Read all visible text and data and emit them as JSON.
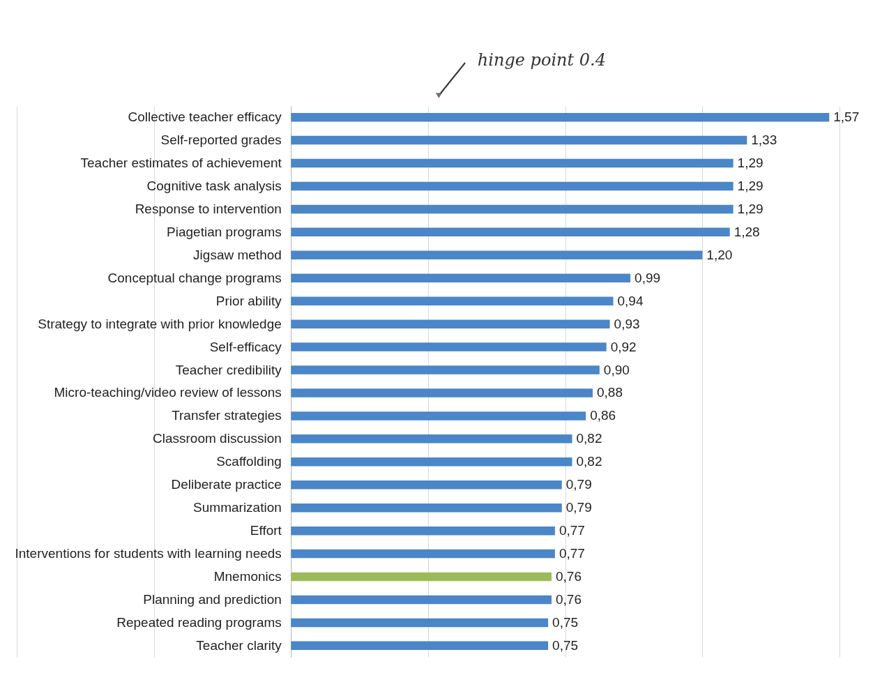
{
  "chart_data": {
    "type": "bar",
    "orientation": "horizontal",
    "categories": [
      "Collective teacher efficacy",
      "Self-reported grades",
      "Teacher estimates of achievement",
      "Cognitive task analysis",
      "Response to intervention",
      "Piagetian programs",
      "Jigsaw method",
      "Conceptual change programs",
      "Prior ability",
      "Strategy to integrate with prior knowledge",
      "Self-efficacy",
      "Teacher credibility",
      "Micro-teaching/video review of lessons",
      "Transfer strategies",
      "Classroom discussion",
      "Scaffolding",
      "Deliberate practice",
      "Summarization",
      "Effort",
      "Interventions for students with learning needs",
      "Mnemonics",
      "Planning and prediction",
      "Repeated reading programs",
      "Teacher clarity"
    ],
    "values": [
      1.57,
      1.33,
      1.29,
      1.29,
      1.29,
      1.28,
      1.2,
      0.99,
      0.94,
      0.93,
      0.92,
      0.9,
      0.88,
      0.86,
      0.82,
      0.82,
      0.79,
      0.79,
      0.77,
      0.77,
      0.76,
      0.76,
      0.75,
      0.75
    ],
    "value_labels": [
      "1,57",
      "1,33",
      "1,29",
      "1,29",
      "1,29",
      "1,28",
      "1,20",
      "0,99",
      "0,94",
      "0,93",
      "0,92",
      "0,90",
      "0,88",
      "0,86",
      "0,82",
      "0,82",
      "0,79",
      "0,79",
      "0,77",
      "0,77",
      "0,76",
      "0,76",
      "0,75",
      "0,75"
    ],
    "colors": [
      "#4a86c8",
      "#4a86c8",
      "#4a86c8",
      "#4a86c8",
      "#4a86c8",
      "#4a86c8",
      "#4a86c8",
      "#4a86c8",
      "#4a86c8",
      "#4a86c8",
      "#4a86c8",
      "#4a86c8",
      "#4a86c8",
      "#4a86c8",
      "#4a86c8",
      "#4a86c8",
      "#4a86c8",
      "#4a86c8",
      "#4a86c8",
      "#4a86c8",
      "#9bbb59",
      "#4a86c8",
      "#4a86c8",
      "#4a86c8"
    ],
    "xlim": [
      -0.8,
      1.6
    ],
    "xticks": [
      {
        "value": -0.8,
        "label": null
      },
      {
        "value": -0.4,
        "label": null
      },
      {
        "value": 0,
        "label": null
      },
      {
        "value": 0.4,
        "label": null
      },
      {
        "value": 0.8,
        "label": null
      },
      {
        "value": 1.2,
        "label": null
      },
      {
        "value": 1.6,
        "label": null
      }
    ],
    "grid": "x",
    "tick_labels": "y",
    "annotations": [
      "hinge point 0.4"
    ]
  }
}
